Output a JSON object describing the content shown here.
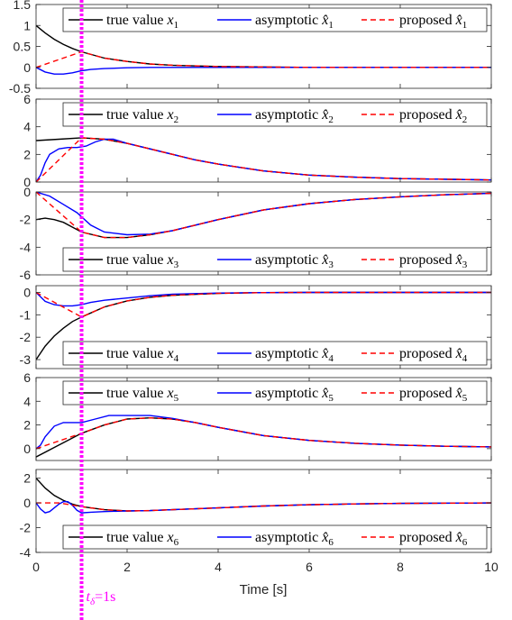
{
  "chart_data": {
    "type": "line",
    "xlabel": "Time [s]",
    "xlim": [
      0,
      10
    ],
    "xticks": [
      0,
      2,
      4,
      6,
      8,
      10
    ],
    "grid": false,
    "marker_line": {
      "x": 1,
      "color": "#ff00ff",
      "label": "t",
      "label_sub": "δ",
      "label_rest": "=1s"
    },
    "colors": {
      "true": "#000000",
      "asymptotic": "#0000ff",
      "proposed": "#ff0000"
    },
    "legend_prefix": {
      "true": "true value ",
      "asymptotic": "asymptotic ",
      "proposed": "proposed "
    },
    "subplots": [
      {
        "ylim": [
          -0.5,
          1.5
        ],
        "yticks": [
          -0.5,
          0,
          0.5,
          1,
          1.5
        ],
        "yticklabels": [
          "-0.5",
          "0",
          "0.5",
          "1",
          "1.5"
        ],
        "legend_position": "top-right",
        "legend": [
          "true value x1",
          "asymptotic x̂1",
          "proposed x̂1"
        ],
        "sub": "1",
        "series": [
          {
            "name": "true value x1",
            "style": "solid",
            "color": "#000000",
            "x": [
              0,
              0.2,
              0.4,
              0.6,
              0.8,
              1,
              1.5,
              2,
              2.5,
              3,
              4,
              5,
              6,
              8,
              10
            ],
            "y": [
              1,
              0.82,
              0.67,
              0.55,
              0.45,
              0.37,
              0.22,
              0.14,
              0.08,
              0.05,
              0.02,
              0.01,
              0,
              0,
              0
            ]
          },
          {
            "name": "asymptotic x̂1",
            "style": "solid",
            "color": "#0000ff",
            "x": [
              0,
              0.2,
              0.4,
              0.6,
              0.8,
              1,
              1.2,
              1.5,
              2,
              2.5,
              3,
              4,
              5,
              6,
              8,
              10
            ],
            "y": [
              0,
              -0.11,
              -0.16,
              -0.16,
              -0.13,
              -0.08,
              -0.05,
              -0.03,
              -0.01,
              0,
              0,
              0,
              0,
              0,
              0,
              0
            ]
          },
          {
            "name": "proposed x̂1",
            "style": "dashed",
            "color": "#ff0000",
            "x": [
              0,
              1,
              1.5,
              2,
              2.5,
              3,
              4,
              5,
              6,
              8,
              10
            ],
            "y": [
              0,
              0.37,
              0.22,
              0.14,
              0.08,
              0.05,
              0.02,
              0.01,
              0,
              0,
              0
            ]
          }
        ]
      },
      {
        "ylim": [
          0,
          6
        ],
        "yticks": [
          0,
          2,
          4,
          6
        ],
        "yticklabels": [
          "0",
          "2",
          "4",
          "6"
        ],
        "legend_position": "top-right",
        "legend": [
          "true value x2",
          "asymptotic x̂2",
          "proposed x̂2"
        ],
        "sub": "2",
        "series": [
          {
            "name": "true value x2",
            "style": "solid",
            "color": "#000000",
            "x": [
              0,
              0.5,
              1,
              1.5,
              2,
              2.5,
              3,
              3.5,
              4,
              5,
              6,
              7,
              8,
              9,
              10
            ],
            "y": [
              3,
              3.1,
              3.2,
              3.1,
              2.8,
              2.4,
              2.0,
              1.6,
              1.3,
              0.8,
              0.5,
              0.35,
              0.25,
              0.2,
              0.15
            ]
          },
          {
            "name": "asymptotic x̂2",
            "style": "solid",
            "color": "#0000ff",
            "x": [
              0,
              0.1,
              0.2,
              0.3,
              0.5,
              0.7,
              0.9,
              1.1,
              1.3,
              1.5,
              1.7,
              2,
              2.5,
              3,
              3.5,
              4,
              5,
              6,
              7,
              8,
              9,
              10
            ],
            "y": [
              0,
              0.5,
              1.4,
              2.0,
              2.4,
              2.5,
              2.5,
              2.6,
              2.9,
              3.1,
              3.1,
              2.8,
              2.4,
              2.0,
              1.6,
              1.3,
              0.8,
              0.5,
              0.35,
              0.25,
              0.2,
              0.15
            ]
          },
          {
            "name": "proposed x̂2",
            "style": "dashed",
            "color": "#ff0000",
            "x": [
              0,
              1,
              1.5,
              2,
              2.5,
              3,
              3.5,
              4,
              5,
              6,
              7,
              8,
              9,
              10
            ],
            "y": [
              0,
              3.2,
              3.1,
              2.8,
              2.4,
              2.0,
              1.6,
              1.3,
              0.8,
              0.5,
              0.35,
              0.25,
              0.2,
              0.15
            ]
          }
        ]
      },
      {
        "ylim": [
          -6,
          0
        ],
        "yticks": [
          -6,
          -4,
          -2,
          0
        ],
        "yticklabels": [
          "-6",
          "-4",
          "-2",
          "0"
        ],
        "legend_position": "bottom-right",
        "legend": [
          "true value x3",
          "asymptotic x̂3",
          "proposed x̂3"
        ],
        "sub": "3",
        "series": [
          {
            "name": "true value x3",
            "style": "solid",
            "color": "#000000",
            "x": [
              0,
              0.2,
              0.4,
              0.6,
              1,
              1.5,
              2,
              2.5,
              3,
              3.5,
              4,
              5,
              6,
              7,
              8,
              9,
              10
            ],
            "y": [
              -2,
              -1.9,
              -2.0,
              -2.2,
              -2.9,
              -3.3,
              -3.3,
              -3.1,
              -2.8,
              -2.4,
              -2.0,
              -1.3,
              -0.85,
              -0.55,
              -0.35,
              -0.2,
              -0.1
            ]
          },
          {
            "name": "asymptotic x̂3",
            "style": "solid",
            "color": "#0000ff",
            "x": [
              0,
              0.3,
              0.6,
              0.9,
              1.2,
              1.5,
              2,
              2.5,
              3,
              3.5,
              4,
              5,
              6,
              7,
              8,
              9,
              10
            ],
            "y": [
              0,
              -0.3,
              -0.9,
              -1.5,
              -2.4,
              -2.9,
              -3.1,
              -3.05,
              -2.8,
              -2.4,
              -2.0,
              -1.3,
              -0.85,
              -0.55,
              -0.35,
              -0.2,
              -0.1
            ]
          },
          {
            "name": "proposed x̂3",
            "style": "dashed",
            "color": "#ff0000",
            "x": [
              0,
              1,
              1.5,
              2,
              2.5,
              3,
              3.5,
              4,
              5,
              6,
              7,
              8,
              9,
              10
            ],
            "y": [
              0,
              -2.9,
              -3.3,
              -3.3,
              -3.1,
              -2.8,
              -2.4,
              -2.0,
              -1.3,
              -0.85,
              -0.55,
              -0.35,
              -0.2,
              -0.1
            ]
          }
        ]
      },
      {
        "ylim": [
          -3.4,
          0.3
        ],
        "yticks": [
          -3,
          -2,
          -1,
          0
        ],
        "yticklabels": [
          "-3",
          "-2",
          "-1",
          "0"
        ],
        "legend_position": "bottom-right",
        "legend": [
          "true value x4",
          "asymptotic x̂4",
          "proposed x̂4"
        ],
        "sub": "4",
        "series": [
          {
            "name": "true value x4",
            "style": "solid",
            "color": "#000000",
            "x": [
              0,
              0.2,
              0.4,
              0.6,
              0.8,
              1,
              1.5,
              2,
              2.5,
              3,
              4,
              5,
              6,
              8,
              10
            ],
            "y": [
              -3,
              -2.4,
              -1.95,
              -1.6,
              -1.3,
              -1.1,
              -0.65,
              -0.38,
              -0.22,
              -0.13,
              -0.04,
              -0.01,
              0,
              0,
              0
            ]
          },
          {
            "name": "asymptotic x̂4",
            "style": "solid",
            "color": "#0000ff",
            "x": [
              0,
              0.2,
              0.4,
              0.6,
              0.8,
              1,
              1.2,
              1.5,
              2,
              2.5,
              3,
              4,
              5,
              6,
              8,
              10
            ],
            "y": [
              0,
              -0.4,
              -0.55,
              -0.6,
              -0.6,
              -0.55,
              -0.45,
              -0.35,
              -0.25,
              -0.15,
              -0.08,
              -0.03,
              -0.01,
              0,
              0,
              0
            ]
          },
          {
            "name": "proposed x̂4",
            "style": "dashed",
            "color": "#ff0000",
            "x": [
              0,
              1,
              1.5,
              2,
              2.5,
              3,
              4,
              5,
              6,
              8,
              10
            ],
            "y": [
              0,
              -1.1,
              -0.65,
              -0.38,
              -0.22,
              -0.13,
              -0.04,
              -0.01,
              0,
              0,
              0
            ]
          }
        ]
      },
      {
        "ylim": [
          -1,
          6
        ],
        "yticks": [
          0,
          2,
          4,
          6
        ],
        "yticklabels": [
          "0",
          "2",
          "4",
          "6"
        ],
        "legend_position": "top-right",
        "legend": [
          "true value x5",
          "asymptotic x̂5",
          "proposed x̂5"
        ],
        "sub": "5",
        "series": [
          {
            "name": "true value x5",
            "style": "solid",
            "color": "#000000",
            "x": [
              0,
              0.5,
              1,
              1.5,
              2,
              2.5,
              3,
              3.5,
              4,
              5,
              6,
              7,
              8,
              9,
              10
            ],
            "y": [
              -0.7,
              0.3,
              1.3,
              2.0,
              2.5,
              2.6,
              2.5,
              2.2,
              1.8,
              1.1,
              0.7,
              0.45,
              0.3,
              0.2,
              0.15
            ]
          },
          {
            "name": "asymptotic x̂5",
            "style": "solid",
            "color": "#0000ff",
            "x": [
              0,
              0.1,
              0.2,
              0.4,
              0.6,
              0.8,
              1,
              1.3,
              1.6,
              2,
              2.5,
              3,
              3.5,
              4,
              5,
              6,
              7,
              8,
              9,
              10
            ],
            "y": [
              0,
              0.3,
              1.0,
              1.9,
              2.2,
              2.2,
              2.2,
              2.5,
              2.8,
              2.8,
              2.8,
              2.55,
              2.2,
              1.8,
              1.1,
              0.7,
              0.45,
              0.3,
              0.2,
              0.15
            ]
          },
          {
            "name": "proposed x̂5",
            "style": "dashed",
            "color": "#ff0000",
            "x": [
              0,
              1,
              1.5,
              2,
              2.5,
              3,
              3.5,
              4,
              5,
              6,
              7,
              8,
              9,
              10
            ],
            "y": [
              0,
              1.3,
              2.0,
              2.5,
              2.6,
              2.5,
              2.2,
              1.8,
              1.1,
              0.7,
              0.45,
              0.3,
              0.2,
              0.15
            ]
          }
        ]
      },
      {
        "ylim": [
          -4,
          2.7
        ],
        "yticks": [
          -4,
          -2,
          0,
          2
        ],
        "yticklabels": [
          "-4",
          "-2",
          "0",
          "2"
        ],
        "legend_position": "bottom-right",
        "legend": [
          "true value x6",
          "asymptotic x̂6",
          "proposed x̂6"
        ],
        "sub": "6",
        "series": [
          {
            "name": "true value x6",
            "style": "solid",
            "color": "#000000",
            "x": [
              0,
              0.2,
              0.4,
              0.6,
              0.8,
              1,
              1.5,
              2,
              2.5,
              3,
              4,
              5,
              6,
              7,
              8,
              10
            ],
            "y": [
              2,
              1.2,
              0.6,
              0.2,
              -0.1,
              -0.3,
              -0.55,
              -0.65,
              -0.62,
              -0.55,
              -0.4,
              -0.25,
              -0.15,
              -0.08,
              -0.04,
              0
            ]
          },
          {
            "name": "asymptotic x̂6",
            "style": "solid",
            "color": "#0000ff",
            "x": [
              0,
              0.1,
              0.2,
              0.3,
              0.4,
              0.5,
              0.6,
              0.7,
              0.8,
              0.9,
              1,
              1.2,
              1.5,
              2,
              2.5,
              3,
              4,
              5,
              6,
              7,
              8,
              10
            ],
            "y": [
              0,
              -0.5,
              -0.8,
              -0.7,
              -0.4,
              -0.1,
              0.1,
              0.1,
              -0.2,
              -0.6,
              -0.8,
              -0.75,
              -0.7,
              -0.65,
              -0.62,
              -0.55,
              -0.4,
              -0.25,
              -0.15,
              -0.08,
              -0.04,
              0
            ]
          },
          {
            "name": "proposed x̂6",
            "style": "dashed",
            "color": "#ff0000",
            "x": [
              0,
              0.5,
              1,
              1.5,
              2,
              2.5,
              3,
              4,
              5,
              6,
              7,
              8,
              10
            ],
            "y": [
              0,
              0,
              -0.3,
              -0.55,
              -0.65,
              -0.62,
              -0.55,
              -0.4,
              -0.25,
              -0.15,
              -0.08,
              -0.04,
              0
            ]
          }
        ]
      }
    ]
  }
}
